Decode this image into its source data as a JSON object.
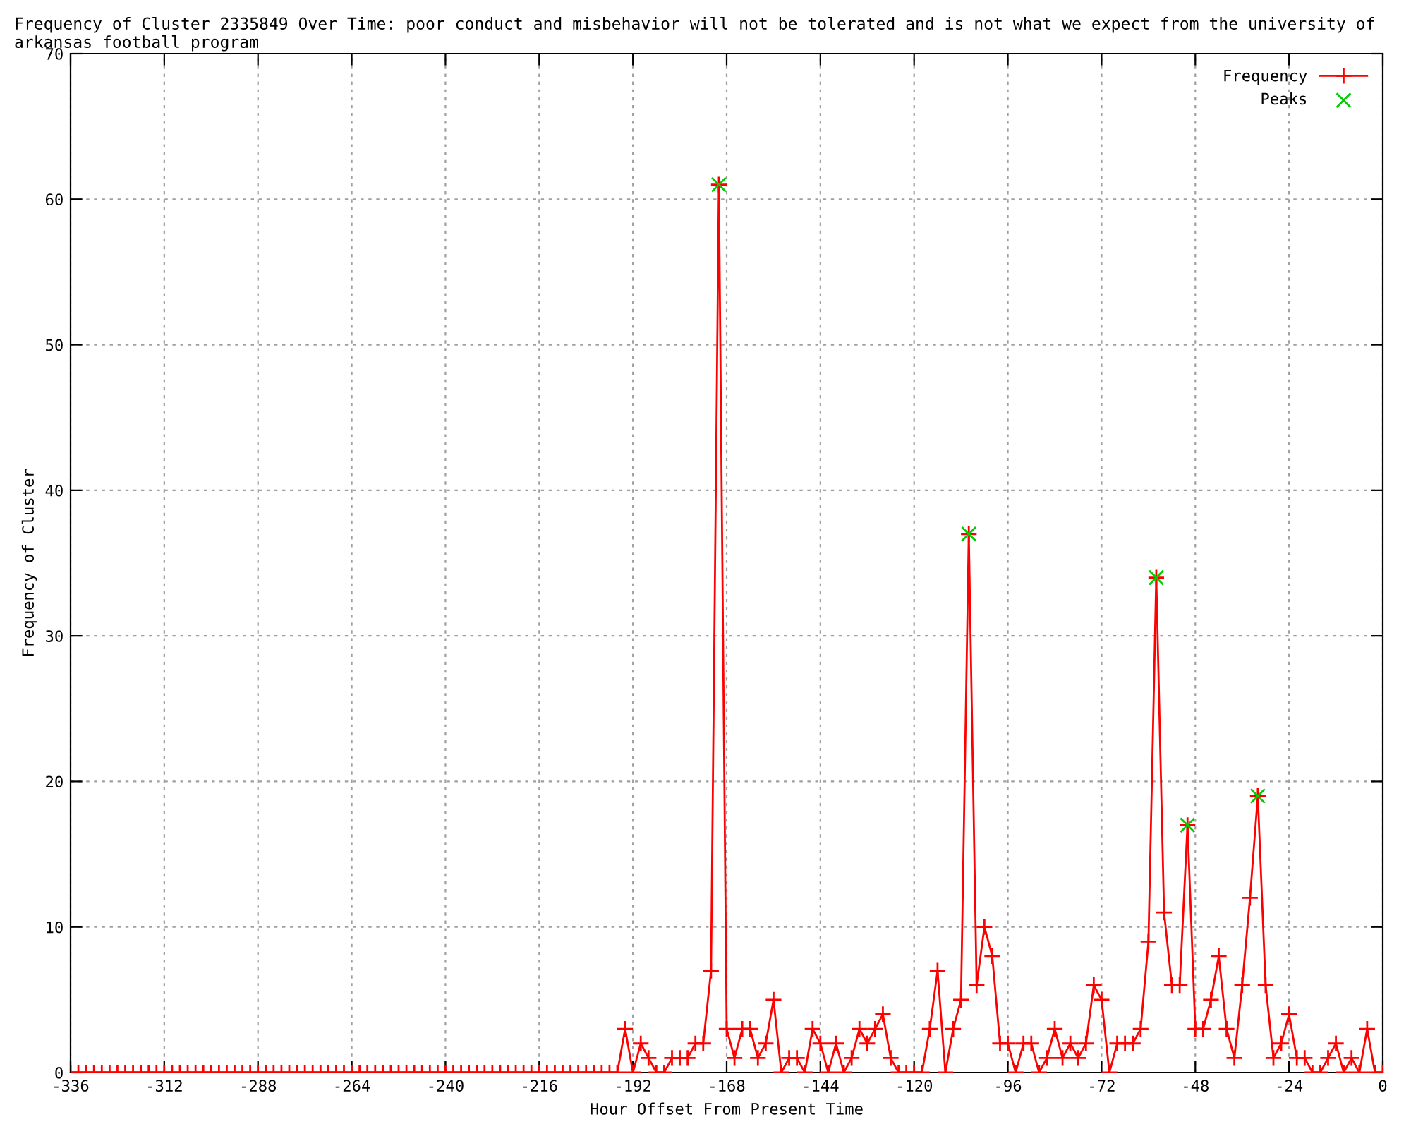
{
  "chart_data": {
    "type": "line",
    "title": "Frequency of Cluster 2335849 Over Time: poor conduct and misbehavior will not be tolerated and is not what we expect from the university of arkansas football program",
    "xlabel": "Hour Offset From Present Time",
    "ylabel": "Frequency of Cluster",
    "series": [
      {
        "name": "Frequency",
        "color": "#ff0000",
        "marker": "cross",
        "x": [
          -336,
          -334,
          -332,
          -330,
          -328,
          -326,
          -324,
          -322,
          -320,
          -318,
          -316,
          -314,
          -312,
          -310,
          -308,
          -306,
          -304,
          -302,
          -300,
          -298,
          -296,
          -294,
          -292,
          -290,
          -288,
          -286,
          -284,
          -282,
          -280,
          -278,
          -276,
          -274,
          -272,
          -270,
          -268,
          -266,
          -264,
          -262,
          -260,
          -258,
          -256,
          -254,
          -252,
          -250,
          -248,
          -246,
          -244,
          -242,
          -240,
          -238,
          -236,
          -234,
          -232,
          -230,
          -228,
          -226,
          -224,
          -222,
          -220,
          -218,
          -216,
          -214,
          -212,
          -210,
          -208,
          -206,
          -204,
          -202,
          -200,
          -198,
          -196,
          -194,
          -192,
          -190,
          -188,
          -186,
          -184,
          -182,
          -180,
          -178,
          -176,
          -174,
          -172,
          -170,
          -168,
          -166,
          -164,
          -162,
          -160,
          -158,
          -156,
          -154,
          -152,
          -150,
          -148,
          -146,
          -144,
          -142,
          -140,
          -138,
          -136,
          -134,
          -132,
          -130,
          -128,
          -126,
          -124,
          -122,
          -120,
          -118,
          -116,
          -114,
          -112,
          -110,
          -108,
          -106,
          -104,
          -102,
          -100,
          -98,
          -96,
          -94,
          -92,
          -90,
          -88,
          -86,
          -84,
          -82,
          -80,
          -78,
          -76,
          -74,
          -72,
          -70,
          -68,
          -66,
          -64,
          -62,
          -60,
          -58,
          -56,
          -54,
          -52,
          -50,
          -48,
          -46,
          -44,
          -42,
          -40,
          -38,
          -36,
          -34,
          -32,
          -30,
          -28,
          -26,
          -24,
          -22,
          -20,
          -18,
          -16,
          -14,
          -12,
          -10,
          -8,
          -6,
          -4,
          -2,
          0
        ],
        "values": [
          0,
          0,
          0,
          0,
          0,
          0,
          0,
          0,
          0,
          0,
          0,
          0,
          0,
          0,
          0,
          0,
          0,
          0,
          0,
          0,
          0,
          0,
          0,
          0,
          0,
          0,
          0,
          0,
          0,
          0,
          0,
          0,
          0,
          0,
          0,
          0,
          0,
          0,
          0,
          0,
          0,
          0,
          0,
          0,
          0,
          0,
          0,
          0,
          0,
          0,
          0,
          0,
          0,
          0,
          0,
          0,
          0,
          0,
          0,
          0,
          0,
          0,
          0,
          0,
          0,
          0,
          0,
          0,
          0,
          0,
          0,
          3,
          0,
          2,
          1,
          0,
          0,
          1,
          1,
          1,
          2,
          2,
          7,
          61,
          3,
          1,
          3,
          3,
          1,
          2,
          5,
          0,
          1,
          1,
          0,
          3,
          2,
          0,
          2,
          0,
          1,
          3,
          2,
          3,
          4,
          1,
          0,
          0,
          0,
          0,
          3,
          7,
          0,
          3,
          5,
          37,
          6,
          10,
          8,
          2,
          2,
          0,
          2,
          2,
          0,
          1,
          3,
          1,
          2,
          1,
          2,
          6,
          5,
          0,
          2,
          2,
          2,
          3,
          9,
          34,
          11,
          6,
          6,
          17,
          3,
          3,
          5,
          8,
          3,
          1,
          6,
          12,
          19,
          6,
          1,
          2,
          4,
          1,
          1,
          0,
          0,
          1,
          2,
          0,
          1,
          0,
          3,
          0,
          0
        ]
      },
      {
        "name": "Peaks",
        "color": "#00cc00",
        "type": "scatter",
        "marker": "cross",
        "x": [
          -170,
          -106,
          -58,
          -50,
          -32
        ],
        "values": [
          61,
          37,
          34,
          17,
          19
        ]
      }
    ],
    "xlim": [
      -336,
      0
    ],
    "xticks": [
      -336,
      -312,
      -288,
      -264,
      -240,
      -216,
      -192,
      -168,
      -144,
      -120,
      -96,
      -72,
      -48,
      -24,
      0
    ],
    "ylim": [
      0,
      70
    ],
    "yticks": [
      0,
      10,
      20,
      30,
      40,
      50,
      60,
      70
    ],
    "grid": true,
    "legend": "top right"
  }
}
